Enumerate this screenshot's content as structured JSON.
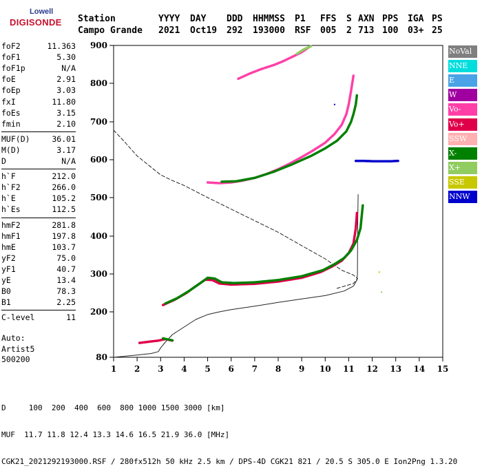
{
  "logo": {
    "line1": "Lowell",
    "line2": "DIGISONDE"
  },
  "header": {
    "labels": [
      "Station",
      "YYYY",
      "DAY",
      "DDD",
      "HHMMSS",
      "P1",
      "FFS",
      "S",
      "AXN",
      "PPS",
      "IGA",
      "PS"
    ],
    "values": [
      "Campo Grande",
      "2021",
      "Oct19",
      "292",
      "193000",
      "RSF",
      "005",
      "2",
      "713",
      "100",
      "03+",
      "25"
    ]
  },
  "params": [
    {
      "label": "foF2",
      "value": "11.363"
    },
    {
      "label": "foF1",
      "value": "5.30"
    },
    {
      "label": "foF1p",
      "value": "N/A"
    },
    {
      "label": "foE",
      "value": "2.91"
    },
    {
      "label": "foEp",
      "value": "3.03"
    },
    {
      "label": "fxI",
      "value": "11.80"
    },
    {
      "label": "foEs",
      "value": "3.15"
    },
    {
      "label": "fmin",
      "value": "2.10"
    },
    {
      "label": "MUF(D)",
      "value": "36.01"
    },
    {
      "label": "M(D)",
      "value": "3.17"
    },
    {
      "label": "D",
      "value": "N/A"
    },
    {
      "label": "h`F",
      "value": "212.0"
    },
    {
      "label": "h`F2",
      "value": "266.0"
    },
    {
      "label": "h`E",
      "value": "105.2"
    },
    {
      "label": "h`Es",
      "value": "112.5"
    },
    {
      "label": "hmF2",
      "value": "281.8"
    },
    {
      "label": "hmF1",
      "value": "197.8"
    },
    {
      "label": "hmE",
      "value": "103.7"
    },
    {
      "label": "yF2",
      "value": "75.0"
    },
    {
      "label": "yF1",
      "value": "40.7"
    },
    {
      "label": "yE",
      "value": "13.4"
    },
    {
      "label": "B0",
      "value": "78.3"
    },
    {
      "label": "B1",
      "value": "2.25"
    },
    {
      "label": "C-level",
      "value": "11"
    }
  ],
  "auto": {
    "line1": "Auto:",
    "line2": "Artist5",
    "line3": "500200"
  },
  "legend": [
    {
      "label": "NoVal",
      "color": "#7f7f7f"
    },
    {
      "label": "NNE",
      "color": "#00dddd"
    },
    {
      "label": "E",
      "color": "#4aa3e6"
    },
    {
      "label": "W",
      "color": "#a000a0"
    },
    {
      "label": "Vo-",
      "color": "#ff3fa8"
    },
    {
      "label": "Vo+",
      "color": "#e0004a"
    },
    {
      "label": "SSW",
      "color": "#ffb0b0"
    },
    {
      "label": "X-",
      "color": "#008000"
    },
    {
      "label": "X+",
      "color": "#90cc60"
    },
    {
      "label": "SSE",
      "color": "#c8c800"
    },
    {
      "label": "NNW",
      "color": "#0000cc"
    }
  ],
  "footer": {
    "d_line": "D     100  200  400  600  800 1000 1500 3000 [km]",
    "muf_line": "MUF  11.7 11.8 12.4 13.3 14.6 16.5 21.9 36.0 [MHz]",
    "info_line": "CGK21_2021292193000.RSF / 280fx512h 50 kHz 2.5 km / DPS-4D CGK21 821 / 20.5 S 305.0 E Ion2Png 1.3.20"
  },
  "chart_data": {
    "type": "scatter",
    "xlabel": "",
    "ylabel": "",
    "xlim": [
      1,
      15
    ],
    "ylim": [
      80,
      900
    ],
    "xticks": [
      "1",
      "2",
      "3",
      "4",
      "5",
      "6",
      "7",
      "8",
      "9",
      "10",
      "11",
      "12",
      "13",
      "14",
      "15"
    ],
    "yticks": [
      "80",
      "200",
      "300",
      "400",
      "500",
      "600",
      "700",
      "800",
      "900"
    ],
    "series": [
      {
        "color": "#7f7f7f",
        "points": [
          [
            1.0,
            80
          ],
          [
            2.0,
            86
          ],
          [
            2.6,
            90
          ],
          [
            2.9,
            95
          ],
          [
            3.0,
            105
          ],
          [
            3.2,
            120
          ],
          [
            3.5,
            140
          ],
          [
            4.0,
            160
          ],
          [
            4.5,
            180
          ],
          [
            5.0,
            193
          ],
          [
            5.5,
            200
          ],
          [
            6.0,
            206
          ],
          [
            7.0,
            215
          ],
          [
            8.0,
            225
          ],
          [
            9.0,
            234
          ],
          [
            10.0,
            243
          ],
          [
            10.8,
            255
          ],
          [
            11.2,
            268
          ],
          [
            11.35,
            284
          ],
          [
            11.37,
            300
          ],
          [
            11.38,
            420
          ],
          [
            11.4,
            508
          ]
        ]
      },
      {
        "color": "#7f7f7f",
        "dashed": true,
        "points": [
          [
            1.0,
            678
          ],
          [
            1.5,
            645
          ],
          [
            2.0,
            610
          ],
          [
            2.5,
            585
          ],
          [
            3.0,
            560
          ],
          [
            3.5,
            545
          ],
          [
            4.0,
            532
          ],
          [
            5.0,
            500
          ],
          [
            6.0,
            470
          ],
          [
            7.0,
            440
          ],
          [
            8.0,
            410
          ],
          [
            9.0,
            375
          ],
          [
            10.0,
            340
          ],
          [
            10.7,
            310
          ],
          [
            11.2,
            297
          ],
          [
            11.38,
            288
          ],
          [
            11.2,
            275
          ],
          [
            10.5,
            262
          ]
        ]
      },
      {
        "color": "#e0004a",
        "points": [
          [
            3.1,
            218
          ],
          [
            3.6,
            232
          ],
          [
            4.1,
            250
          ],
          [
            4.5,
            268
          ],
          [
            4.9,
            285
          ],
          [
            5.2,
            284
          ],
          [
            5.5,
            275
          ],
          [
            6.0,
            272
          ],
          [
            7.0,
            274
          ],
          [
            8.0,
            280
          ],
          [
            9.0,
            290
          ],
          [
            9.8,
            305
          ],
          [
            10.3,
            320
          ],
          [
            10.7,
            335
          ],
          [
            11.0,
            355
          ],
          [
            11.2,
            380
          ],
          [
            11.3,
            420
          ],
          [
            11.35,
            460
          ]
        ]
      },
      {
        "color": "#008000",
        "points": [
          [
            3.2,
            222
          ],
          [
            3.7,
            236
          ],
          [
            4.2,
            255
          ],
          [
            4.6,
            272
          ],
          [
            5.0,
            290
          ],
          [
            5.3,
            288
          ],
          [
            5.6,
            278
          ],
          [
            6.1,
            276
          ],
          [
            7.0,
            278
          ],
          [
            8.0,
            284
          ],
          [
            9.0,
            294
          ],
          [
            9.9,
            310
          ],
          [
            10.4,
            326
          ],
          [
            10.8,
            342
          ],
          [
            11.1,
            362
          ],
          [
            11.35,
            390
          ],
          [
            11.5,
            420
          ],
          [
            11.6,
            480
          ]
        ]
      },
      {
        "color": "#ff3fa8",
        "points": [
          [
            5.0,
            540
          ],
          [
            5.5,
            538
          ],
          [
            6.0,
            540
          ],
          [
            6.5,
            545
          ],
          [
            7.0,
            552
          ],
          [
            7.5,
            562
          ],
          [
            8.0,
            575
          ],
          [
            8.5,
            590
          ],
          [
            9.0,
            607
          ],
          [
            9.5,
            625
          ],
          [
            10.0,
            645
          ],
          [
            10.4,
            668
          ],
          [
            10.7,
            692
          ],
          [
            10.9,
            720
          ],
          [
            11.0,
            745
          ],
          [
            11.1,
            780
          ],
          [
            11.2,
            820
          ]
        ]
      },
      {
        "color": "#008000",
        "points": [
          [
            5.6,
            542
          ],
          [
            6.2,
            543
          ],
          [
            7.0,
            552
          ],
          [
            7.8,
            568
          ],
          [
            8.6,
            588
          ],
          [
            9.4,
            610
          ],
          [
            10.0,
            630
          ],
          [
            10.5,
            650
          ],
          [
            10.9,
            675
          ],
          [
            11.1,
            700
          ],
          [
            11.2,
            720
          ],
          [
            11.3,
            745
          ],
          [
            11.35,
            770
          ]
        ]
      },
      {
        "color": "#0000cc",
        "points": [
          [
            11.3,
            597
          ],
          [
            11.6,
            597
          ],
          [
            12.0,
            596
          ],
          [
            12.4,
            596
          ],
          [
            12.8,
            596
          ],
          [
            13.1,
            597
          ]
        ]
      },
      {
        "color": "#ff3fa8",
        "points": [
          [
            6.3,
            812
          ],
          [
            6.8,
            826
          ],
          [
            7.3,
            838
          ],
          [
            7.8,
            848
          ],
          [
            8.2,
            858
          ],
          [
            8.6,
            870
          ],
          [
            9.0,
            882
          ],
          [
            9.3,
            895
          ]
        ]
      },
      {
        "color": "#90cc60",
        "points": [
          [
            8.8,
            878
          ],
          [
            9.1,
            890
          ],
          [
            9.4,
            898
          ]
        ]
      },
      {
        "color": "#e0004a",
        "points": [
          [
            2.1,
            118
          ],
          [
            2.5,
            121
          ],
          [
            2.9,
            124
          ],
          [
            3.2,
            128
          ],
          [
            3.5,
            124
          ]
        ]
      },
      {
        "color": "#008000",
        "points": [
          [
            3.1,
            130
          ],
          [
            3.3,
            127
          ],
          [
            3.5,
            125
          ]
        ]
      },
      {
        "color": "#c8c800",
        "points": [
          [
            12.3,
            305
          ]
        ]
      },
      {
        "color": "#90cc60",
        "points": [
          [
            12.4,
            252
          ]
        ]
      },
      {
        "color": "#0000cc",
        "points": [
          [
            10.4,
            745
          ]
        ]
      }
    ]
  }
}
